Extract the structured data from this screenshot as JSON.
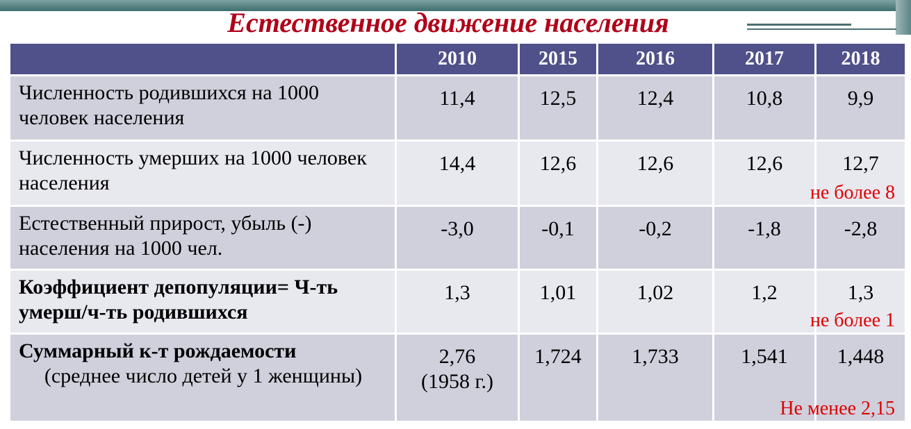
{
  "header": {
    "title": "Естественное движение населения"
  },
  "table": {
    "columns": [
      "",
      "2010",
      "2015",
      "2016",
      "2017",
      "2018"
    ],
    "rows": [
      {
        "label": "Численность родившихся на 1000 человек населения",
        "values": [
          "11,4",
          "12,5",
          "12,4",
          "10,8",
          "9,9"
        ]
      },
      {
        "label": "Численность умерших на 1000 человек населения",
        "values": [
          "14,4",
          "12,6",
          "12,6",
          "12,6",
          "12,7"
        ],
        "note": "не более 8"
      },
      {
        "label": "Естественный прирост, убыль (-) населения на 1000 чел.",
        "values": [
          "-3,0",
          "-0,1",
          "-0,2",
          "-1,8",
          "-2,8"
        ]
      },
      {
        "label_bold": "Коэффициент депопуляции= Ч-ть умерш/ч-ть родившихся",
        "values": [
          "1,3",
          "1,01",
          "1,02",
          "1,2",
          "1,3"
        ],
        "note": "не более 1"
      },
      {
        "label_bold": "Суммарный к-т рождаемости",
        "label": "(среднее число детей у 1 женщины)",
        "values": [
          "2,76",
          "1,724",
          "1,733",
          "1,541",
          "1,448"
        ],
        "value_note": "(1958 г.)",
        "note": "Не менее 2,15"
      }
    ]
  }
}
